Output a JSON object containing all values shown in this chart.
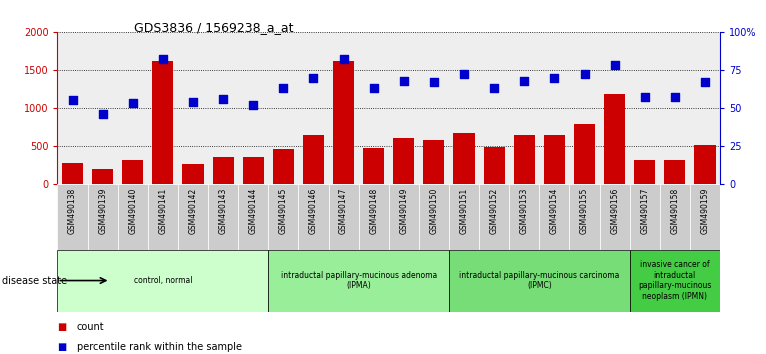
{
  "title": "GDS3836 / 1569238_a_at",
  "samples": [
    "GSM490138",
    "GSM490139",
    "GSM490140",
    "GSM490141",
    "GSM490142",
    "GSM490143",
    "GSM490144",
    "GSM490145",
    "GSM490146",
    "GSM490147",
    "GSM490148",
    "GSM490149",
    "GSM490150",
    "GSM490151",
    "GSM490152",
    "GSM490153",
    "GSM490154",
    "GSM490155",
    "GSM490156",
    "GSM490157",
    "GSM490158",
    "GSM490159"
  ],
  "counts": [
    280,
    200,
    310,
    1620,
    270,
    360,
    350,
    460,
    650,
    1620,
    470,
    610,
    580,
    670,
    490,
    640,
    640,
    790,
    1180,
    310,
    320,
    510
  ],
  "percentiles": [
    55,
    46,
    53,
    82,
    54,
    56,
    52,
    63,
    70,
    82,
    63,
    68,
    67,
    72,
    63,
    68,
    70,
    72,
    78,
    57,
    57,
    67
  ],
  "bar_color": "#cc0000",
  "dot_color": "#0000cc",
  "ylim_left": [
    0,
    2000
  ],
  "ylim_right": [
    0,
    100
  ],
  "yticks_left": [
    0,
    500,
    1000,
    1500,
    2000
  ],
  "yticks_right": [
    0,
    25,
    50,
    75,
    100
  ],
  "groups": [
    {
      "label": "control, normal",
      "start": 0,
      "end": 7,
      "color": "#ccffcc"
    },
    {
      "label": "intraductal papillary-mucinous adenoma\n(IPMA)",
      "start": 7,
      "end": 13,
      "color": "#99ee99"
    },
    {
      "label": "intraductal papillary-mucinous carcinoma\n(IPMC)",
      "start": 13,
      "end": 19,
      "color": "#77dd77"
    },
    {
      "label": "invasive cancer of\nintraductal\npapillary-mucinous\nneoplasm (IPMN)",
      "start": 19,
      "end": 22,
      "color": "#44cc44"
    }
  ],
  "disease_state_label": "disease state",
  "legend_count_label": "count",
  "legend_pct_label": "percentile rank within the sample",
  "background_color": "#ffffff",
  "tick_bg_color": "#cccccc",
  "plot_bg_color": "#eeeeee"
}
